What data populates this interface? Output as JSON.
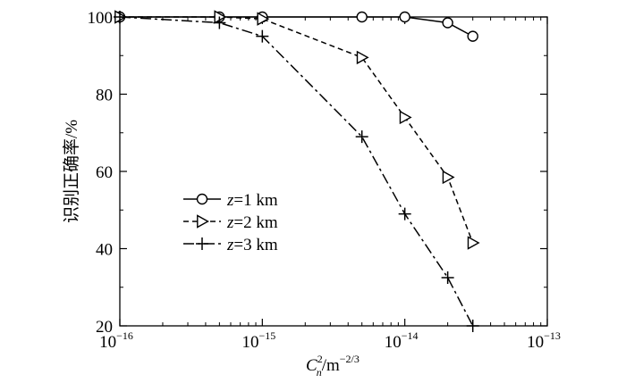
{
  "chart_data": {
    "type": "line",
    "xscale": "log",
    "xlim": [
      1e-16,
      1e-13
    ],
    "ylim": [
      20,
      100
    ],
    "x_ticks": [
      {
        "base": "10",
        "exp": "−16"
      },
      {
        "base": "10",
        "exp": "−15"
      },
      {
        "base": "10",
        "exp": "−14"
      },
      {
        "base": "10",
        "exp": "−13"
      }
    ],
    "y_ticks": [
      "20",
      "40",
      "60",
      "80",
      "100"
    ],
    "xlabel": {
      "main": "C",
      "sup": "2",
      "sub": "n",
      "unit": "/m",
      "unit_sup": "−2/3"
    },
    "ylabel": "识别正确率/%",
    "grid": false,
    "legend_position": "center-left",
    "series": [
      {
        "name": "z=1 km",
        "name_var": "z",
        "name_rest": "=1 km",
        "marker": "circle",
        "dash": "solid",
        "x": [
          1e-16,
          5e-16,
          1e-15,
          5e-15,
          1e-14,
          2e-14,
          3e-14
        ],
        "y": [
          100,
          100,
          100,
          100,
          100,
          98.5,
          95
        ]
      },
      {
        "name": "z=2 km",
        "name_var": "z",
        "name_rest": "=2 km",
        "marker": "triangle-right",
        "dash": "dashed",
        "x": [
          1e-16,
          5e-16,
          1e-15,
          5e-15,
          1e-14,
          2e-14,
          3e-14
        ],
        "y": [
          100,
          100,
          99.5,
          89.5,
          74,
          58.5,
          41.5
        ]
      },
      {
        "name": "z=3 km",
        "name_var": "z",
        "name_rest": "=3 km",
        "marker": "plus",
        "dash": "dashdot",
        "x": [
          1e-16,
          5e-16,
          1e-15,
          5e-15,
          1e-14,
          2e-14,
          3e-14
        ],
        "y": [
          100,
          98.5,
          95,
          69,
          49,
          32.5,
          20
        ]
      }
    ]
  }
}
